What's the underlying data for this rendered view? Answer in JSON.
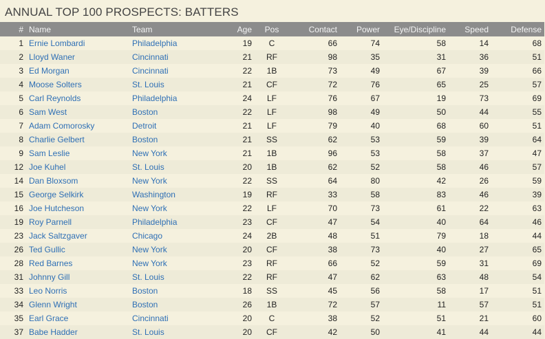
{
  "title": "ANNUAL TOP 100 PROSPECTS: BATTERS",
  "colors": {
    "header_bg": "#8c8c8c",
    "page_bg": "#f5f1de",
    "link": "#2e6fb5"
  },
  "columns": [
    "#",
    "Name",
    "Team",
    "Age",
    "Pos",
    "Contact",
    "Power",
    "Eye/Discipline",
    "Speed",
    "Defense"
  ],
  "rows": [
    {
      "rank": "1",
      "name": "Ernie Lombardi",
      "team": "Philadelphia",
      "age": "19",
      "pos": "C",
      "contact": "66",
      "power": "74",
      "eye": "58",
      "speed": "14",
      "defense": "68"
    },
    {
      "rank": "2",
      "name": "Lloyd Waner",
      "team": "Cincinnati",
      "age": "21",
      "pos": "RF",
      "contact": "98",
      "power": "35",
      "eye": "31",
      "speed": "36",
      "defense": "51"
    },
    {
      "rank": "3",
      "name": "Ed Morgan",
      "team": "Cincinnati",
      "age": "22",
      "pos": "1B",
      "contact": "73",
      "power": "49",
      "eye": "67",
      "speed": "39",
      "defense": "66"
    },
    {
      "rank": "4",
      "name": "Moose Solters",
      "team": "St. Louis",
      "age": "21",
      "pos": "CF",
      "contact": "72",
      "power": "76",
      "eye": "65",
      "speed": "25",
      "defense": "57"
    },
    {
      "rank": "5",
      "name": "Carl Reynolds",
      "team": "Philadelphia",
      "age": "24",
      "pos": "LF",
      "contact": "76",
      "power": "67",
      "eye": "19",
      "speed": "73",
      "defense": "69"
    },
    {
      "rank": "6",
      "name": "Sam West",
      "team": "Boston",
      "age": "22",
      "pos": "LF",
      "contact": "98",
      "power": "49",
      "eye": "50",
      "speed": "44",
      "defense": "55"
    },
    {
      "rank": "7",
      "name": "Adam Comorosky",
      "team": "Detroit",
      "age": "21",
      "pos": "LF",
      "contact": "79",
      "power": "40",
      "eye": "68",
      "speed": "60",
      "defense": "51"
    },
    {
      "rank": "8",
      "name": "Charlie Gelbert",
      "team": "Boston",
      "age": "21",
      "pos": "SS",
      "contact": "62",
      "power": "53",
      "eye": "59",
      "speed": "39",
      "defense": "64"
    },
    {
      "rank": "9",
      "name": "Sam Leslie",
      "team": "New York",
      "age": "21",
      "pos": "1B",
      "contact": "96",
      "power": "53",
      "eye": "58",
      "speed": "37",
      "defense": "47"
    },
    {
      "rank": "12",
      "name": "Joe Kuhel",
      "team": "St. Louis",
      "age": "20",
      "pos": "1B",
      "contact": "62",
      "power": "52",
      "eye": "58",
      "speed": "46",
      "defense": "57"
    },
    {
      "rank": "14",
      "name": "Dan Bloxsom",
      "team": "New York",
      "age": "22",
      "pos": "SS",
      "contact": "64",
      "power": "80",
      "eye": "42",
      "speed": "26",
      "defense": "59"
    },
    {
      "rank": "15",
      "name": "George Selkirk",
      "team": "Washington",
      "age": "19",
      "pos": "RF",
      "contact": "33",
      "power": "58",
      "eye": "83",
      "speed": "46",
      "defense": "39"
    },
    {
      "rank": "16",
      "name": "Joe Hutcheson",
      "team": "New York",
      "age": "22",
      "pos": "LF",
      "contact": "70",
      "power": "73",
      "eye": "61",
      "speed": "22",
      "defense": "63"
    },
    {
      "rank": "19",
      "name": "Roy Parnell",
      "team": "Philadelphia",
      "age": "23",
      "pos": "CF",
      "contact": "47",
      "power": "54",
      "eye": "40",
      "speed": "64",
      "defense": "46"
    },
    {
      "rank": "23",
      "name": "Jack Saltzgaver",
      "team": "Chicago",
      "age": "24",
      "pos": "2B",
      "contact": "48",
      "power": "51",
      "eye": "79",
      "speed": "18",
      "defense": "44"
    },
    {
      "rank": "26",
      "name": "Ted Gullic",
      "team": "New York",
      "age": "20",
      "pos": "CF",
      "contact": "38",
      "power": "73",
      "eye": "40",
      "speed": "27",
      "defense": "65"
    },
    {
      "rank": "28",
      "name": "Red Barnes",
      "team": "New York",
      "age": "23",
      "pos": "RF",
      "contact": "66",
      "power": "52",
      "eye": "59",
      "speed": "31",
      "defense": "69"
    },
    {
      "rank": "31",
      "name": "Johnny Gill",
      "team": "St. Louis",
      "age": "22",
      "pos": "RF",
      "contact": "47",
      "power": "62",
      "eye": "63",
      "speed": "48",
      "defense": "54"
    },
    {
      "rank": "33",
      "name": "Leo Norris",
      "team": "Boston",
      "age": "18",
      "pos": "SS",
      "contact": "45",
      "power": "56",
      "eye": "58",
      "speed": "17",
      "defense": "51"
    },
    {
      "rank": "34",
      "name": "Glenn Wright",
      "team": "Boston",
      "age": "26",
      "pos": "1B",
      "contact": "72",
      "power": "57",
      "eye": "11",
      "speed": "57",
      "defense": "51"
    },
    {
      "rank": "35",
      "name": "Earl Grace",
      "team": "Cincinnati",
      "age": "20",
      "pos": "C",
      "contact": "38",
      "power": "52",
      "eye": "51",
      "speed": "21",
      "defense": "60"
    },
    {
      "rank": "37",
      "name": "Babe Hadder",
      "team": "St. Louis",
      "age": "20",
      "pos": "CF",
      "contact": "42",
      "power": "50",
      "eye": "41",
      "speed": "44",
      "defense": "44"
    }
  ]
}
